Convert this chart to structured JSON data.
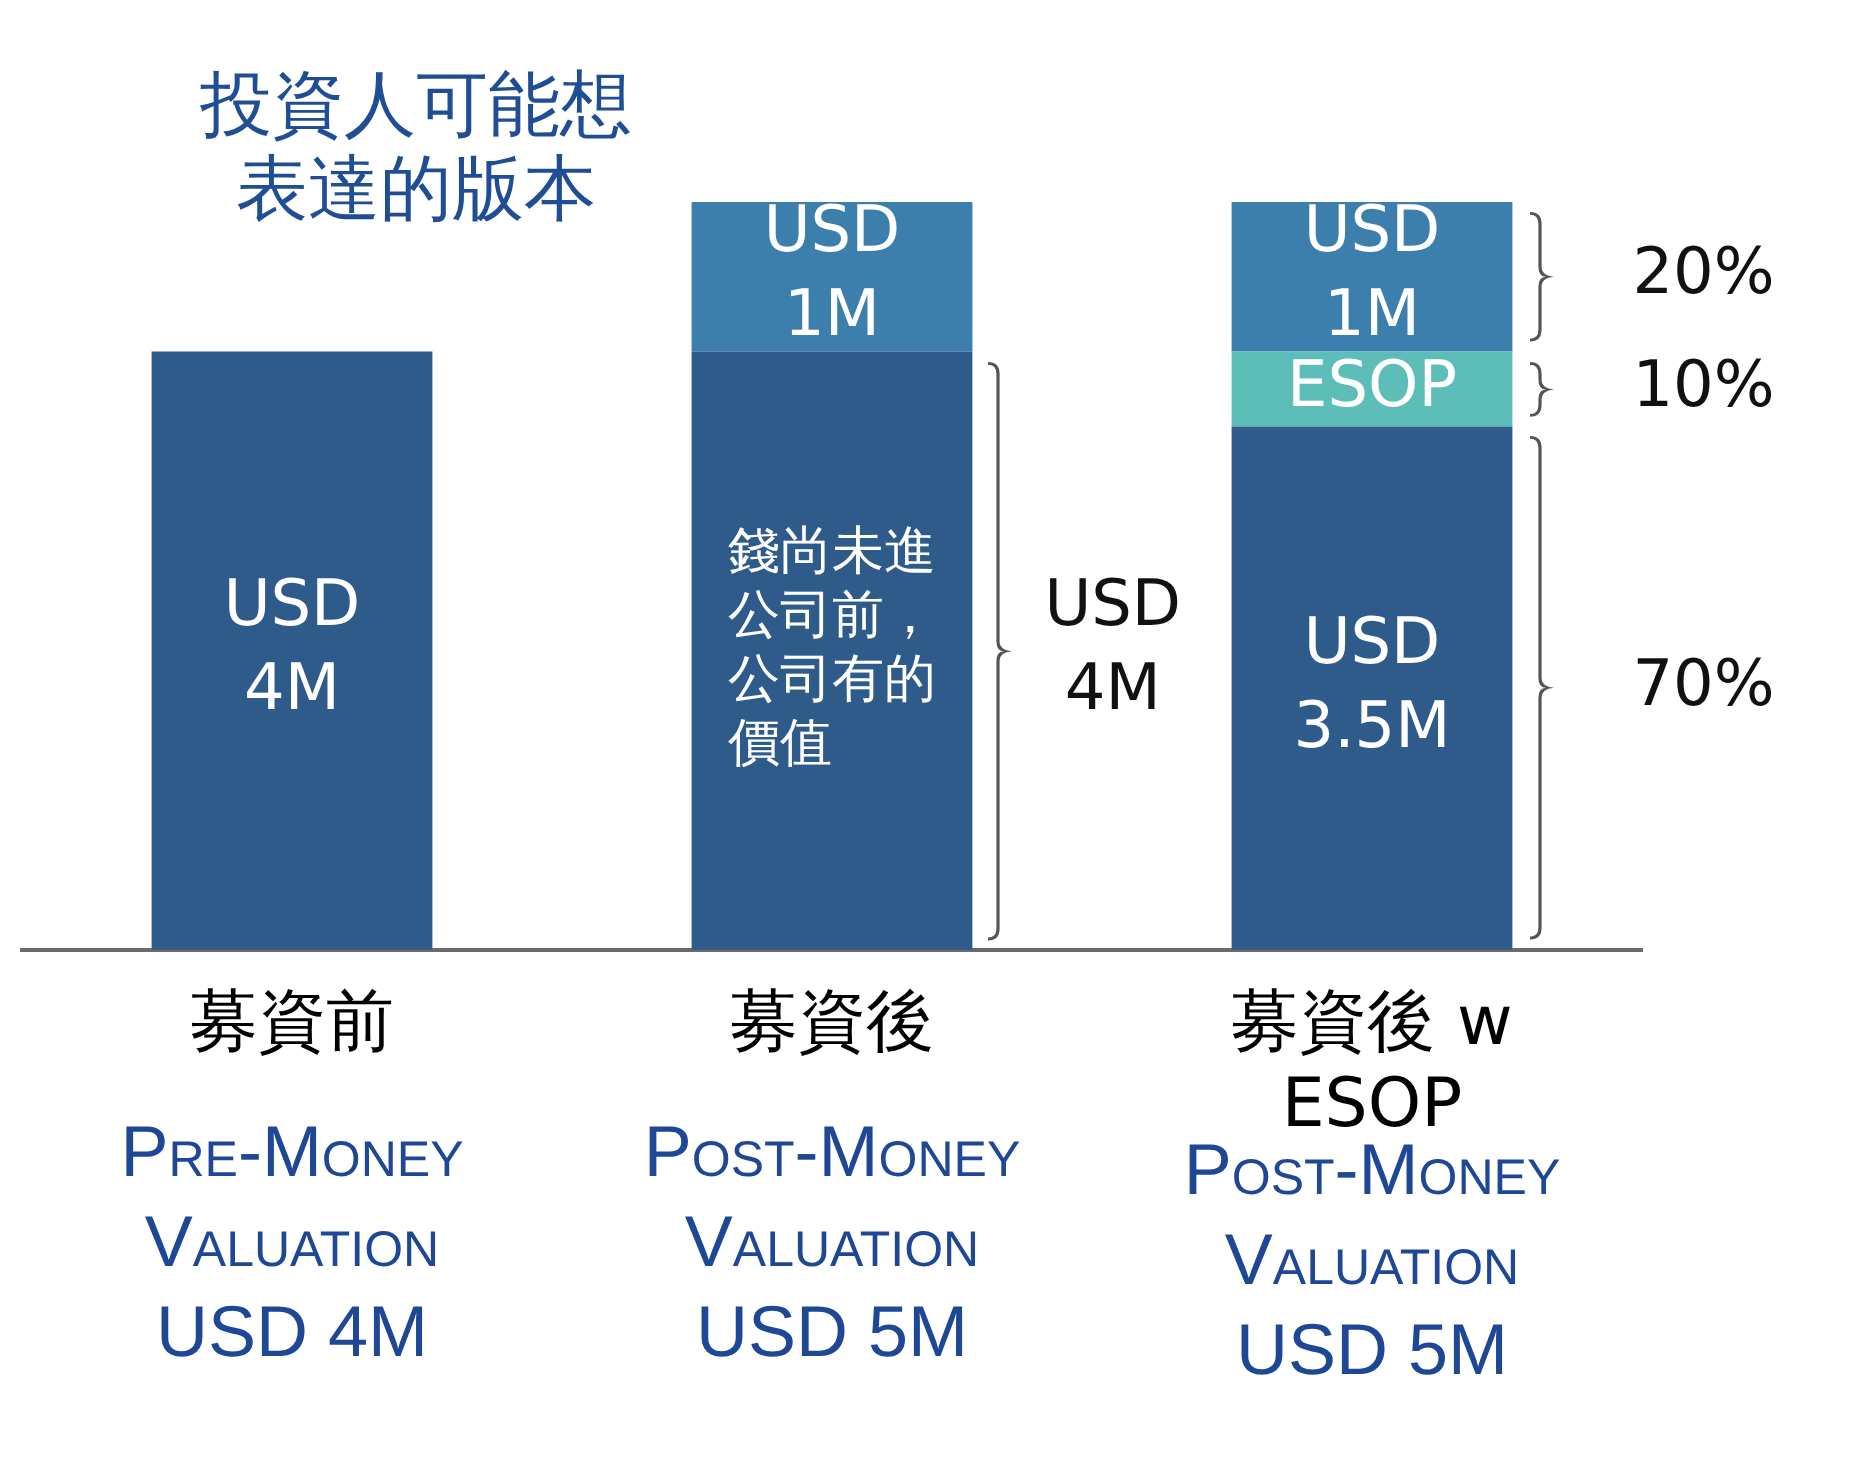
{
  "chart_data": {
    "type": "bar",
    "title": "投資人可能想表達的版本",
    "categories": [
      "募資前",
      "募資後",
      "募資後 w ESOP"
    ],
    "stacked": true,
    "series": [
      {
        "color": "#2f5b8b",
        "values": [
          4000000,
          4000000,
          3500000
        ],
        "value_labels": [
          "USD 4M",
          null,
          "USD 3.5M"
        ]
      },
      {
        "name": "ESOP",
        "color": "#5dbdb8",
        "values": [
          null,
          null,
          500000
        ]
      },
      {
        "color": "#3c7eac",
        "values": [
          null,
          1000000,
          1000000
        ],
        "value_labels": [
          null,
          "USD 1M",
          "USD 1M"
        ]
      }
    ],
    "annotations": [
      "錢尚未進公司前，公司有的價值",
      "USD 4M",
      "20%",
      "10%",
      "70%",
      "Pre-Money Valuation USD 4M",
      "Post-Money Valuation USD 5M",
      "Post-Money Valuation USD 5M"
    ],
    "legend": false,
    "grid": false,
    "tick_labels": "x"
  }
}
